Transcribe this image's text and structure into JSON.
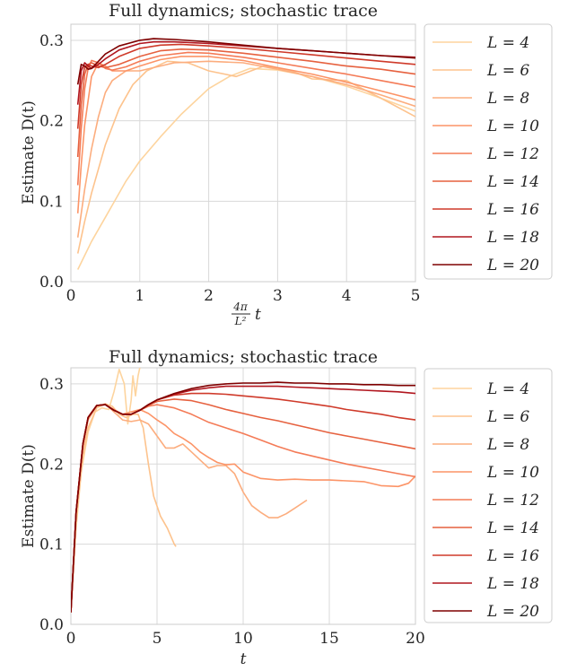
{
  "chart_data": [
    {
      "type": "line",
      "title": "Full dynamics; stochastic trace",
      "xlabel_frac_num": "4π",
      "xlabel_frac_den": "L²",
      "xlabel_var": "t",
      "ylabel": "Estimate D(t)",
      "xlim": [
        0,
        5
      ],
      "ylim": [
        0,
        0.32
      ],
      "xticks": [
        0,
        1,
        2,
        3,
        4,
        5
      ],
      "yticks": [
        0.0,
        0.1,
        0.2,
        0.3
      ],
      "ytick_labels": [
        "0.0",
        "0.1",
        "0.2",
        "0.3"
      ],
      "grid": true,
      "legend_position": "outside-right",
      "series": [
        {
          "name": "L = 4",
          "color": "#fdd49e",
          "x": [
            0.1,
            0.3,
            0.5,
            0.8,
            1.0,
            1.3,
            1.6,
            2.0,
            2.3,
            2.6,
            3.0,
            3.5,
            4.0,
            4.5,
            5.0
          ],
          "y": [
            0.015,
            0.05,
            0.08,
            0.125,
            0.15,
            0.18,
            0.208,
            0.24,
            0.255,
            0.265,
            0.263,
            0.255,
            0.243,
            0.228,
            0.212
          ]
        },
        {
          "name": "L = 6",
          "color": "#fdc38d",
          "x": [
            0.1,
            0.2,
            0.3,
            0.5,
            0.7,
            0.9,
            1.1,
            1.4,
            1.7,
            2.0,
            2.4,
            2.8,
            3.2,
            3.5,
            4.0,
            4.5,
            5.0
          ],
          "y": [
            0.035,
            0.075,
            0.11,
            0.17,
            0.215,
            0.245,
            0.262,
            0.274,
            0.272,
            0.262,
            0.255,
            0.268,
            0.262,
            0.252,
            0.25,
            0.228,
            0.205
          ]
        },
        {
          "name": "L = 8",
          "color": "#fcad7e",
          "x": [
            0.1,
            0.2,
            0.3,
            0.4,
            0.5,
            0.6,
            0.8,
            1.0,
            1.2,
            1.5,
            2.0,
            2.5,
            3.0,
            3.5,
            4.0,
            4.5,
            5.0
          ],
          "y": [
            0.055,
            0.115,
            0.165,
            0.205,
            0.235,
            0.25,
            0.262,
            0.262,
            0.266,
            0.272,
            0.274,
            0.272,
            0.264,
            0.255,
            0.245,
            0.232,
            0.218
          ]
        },
        {
          "name": "L = 10",
          "color": "#fc9467",
          "x": [
            0.1,
            0.15,
            0.2,
            0.3,
            0.4,
            0.5,
            0.6,
            0.8,
            1.0,
            1.3,
            1.6,
            2.0,
            2.5,
            3.0,
            3.5,
            4.0,
            4.5,
            5.0
          ],
          "y": [
            0.085,
            0.145,
            0.195,
            0.255,
            0.272,
            0.268,
            0.262,
            0.262,
            0.268,
            0.276,
            0.28,
            0.28,
            0.275,
            0.266,
            0.258,
            0.248,
            0.237,
            0.226
          ]
        },
        {
          "name": "L = 12",
          "color": "#f47b57",
          "x": [
            0.1,
            0.15,
            0.2,
            0.25,
            0.3,
            0.4,
            0.5,
            0.6,
            0.8,
            1.0,
            1.3,
            1.7,
            2.0,
            2.5,
            3.0,
            3.5,
            4.0,
            4.5,
            5.0
          ],
          "y": [
            0.12,
            0.19,
            0.24,
            0.265,
            0.275,
            0.272,
            0.265,
            0.263,
            0.267,
            0.274,
            0.281,
            0.285,
            0.284,
            0.279,
            0.272,
            0.265,
            0.258,
            0.25,
            0.242
          ]
        },
        {
          "name": "L = 14",
          "color": "#e6613f",
          "x": [
            0.1,
            0.15,
            0.2,
            0.25,
            0.3,
            0.4,
            0.5,
            0.7,
            1.0,
            1.3,
            1.6,
            2.0,
            2.5,
            3.0,
            3.5,
            4.0,
            4.5,
            5.0
          ],
          "y": [
            0.155,
            0.22,
            0.258,
            0.27,
            0.272,
            0.268,
            0.266,
            0.27,
            0.28,
            0.287,
            0.289,
            0.288,
            0.284,
            0.279,
            0.274,
            0.268,
            0.264,
            0.258
          ]
        },
        {
          "name": "L = 16",
          "color": "#cf3a2a",
          "x": [
            0.1,
            0.15,
            0.2,
            0.25,
            0.3,
            0.4,
            0.5,
            0.7,
            1.0,
            1.3,
            1.6,
            2.0,
            2.5,
            3.0,
            3.5,
            4.0,
            4.5,
            5.0
          ],
          "y": [
            0.19,
            0.245,
            0.267,
            0.27,
            0.268,
            0.266,
            0.27,
            0.28,
            0.29,
            0.294,
            0.295,
            0.293,
            0.29,
            0.286,
            0.282,
            0.278,
            0.274,
            0.27
          ]
        },
        {
          "name": "L = 18",
          "color": "#b1161f",
          "x": [
            0.1,
            0.15,
            0.2,
            0.25,
            0.3,
            0.4,
            0.5,
            0.7,
            1.0,
            1.2,
            1.5,
            2.0,
            2.5,
            3.0,
            3.5,
            4.0,
            4.5,
            5.0
          ],
          "y": [
            0.22,
            0.262,
            0.272,
            0.268,
            0.265,
            0.27,
            0.277,
            0.288,
            0.296,
            0.298,
            0.298,
            0.296,
            0.293,
            0.29,
            0.287,
            0.284,
            0.281,
            0.279
          ]
        },
        {
          "name": "L = 20",
          "color": "#7f0000",
          "x": [
            0.1,
            0.15,
            0.2,
            0.25,
            0.3,
            0.4,
            0.5,
            0.7,
            1.0,
            1.2,
            1.5,
            2.0,
            2.5,
            3.0,
            3.5,
            4.0,
            4.5,
            5.0
          ],
          "y": [
            0.245,
            0.27,
            0.268,
            0.264,
            0.265,
            0.274,
            0.283,
            0.293,
            0.3,
            0.302,
            0.301,
            0.298,
            0.294,
            0.29,
            0.287,
            0.284,
            0.281,
            0.278
          ]
        }
      ]
    },
    {
      "type": "line",
      "title": "Full dynamics; stochastic trace",
      "xlabel": "t",
      "ylabel": "Estimate D(t)",
      "xlim": [
        0,
        20
      ],
      "ylim": [
        0,
        0.32
      ],
      "xticks": [
        0,
        5,
        10,
        15,
        20
      ],
      "yticks": [
        0.0,
        0.1,
        0.2,
        0.3
      ],
      "ytick_labels": [
        "0.0",
        "0.1",
        "0.2",
        "0.3"
      ],
      "grid": true,
      "legend_position": "outside-right",
      "series": [
        {
          "name": "L = 4",
          "color": "#fdd49e",
          "x": [
            0,
            0.3,
            0.6,
            1.0,
            1.4,
            1.8,
            2.2,
            2.5,
            2.8,
            3.1,
            3.3,
            3.5,
            3.6,
            3.75,
            3.9,
            4.1
          ],
          "y": [
            0.015,
            0.12,
            0.19,
            0.24,
            0.265,
            0.27,
            0.268,
            0.29,
            0.318,
            0.3,
            0.25,
            0.28,
            0.31,
            0.285,
            0.31,
            0.33
          ]
        },
        {
          "name": "L = 6",
          "color": "#fdc38d",
          "x": [
            0,
            0.3,
            0.7,
            1.0,
            1.5,
            2.0,
            2.4,
            2.8,
            3.2,
            3.6,
            3.9,
            4.2,
            4.5,
            4.8,
            5.2,
            5.6,
            6.0,
            6.1
          ],
          "y": [
            0.015,
            0.13,
            0.21,
            0.245,
            0.27,
            0.275,
            0.272,
            0.262,
            0.258,
            0.262,
            0.262,
            0.245,
            0.2,
            0.16,
            0.135,
            0.12,
            0.1,
            0.097
          ]
        },
        {
          "name": "L = 8",
          "color": "#fcad7e",
          "x": [
            0,
            0.3,
            0.7,
            1.0,
            1.5,
            2.0,
            2.5,
            3.0,
            3.5,
            4.0,
            4.5,
            5.0,
            5.5,
            6.0,
            6.5,
            7.0,
            7.5,
            8.0,
            8.5,
            9.0,
            9.5,
            10.0,
            10.5,
            11.0,
            11.5,
            12.0,
            12.5,
            13.0,
            13.7
          ],
          "y": [
            0.015,
            0.14,
            0.22,
            0.255,
            0.272,
            0.275,
            0.265,
            0.255,
            0.253,
            0.255,
            0.25,
            0.235,
            0.22,
            0.22,
            0.225,
            0.215,
            0.205,
            0.195,
            0.198,
            0.198,
            0.188,
            0.165,
            0.148,
            0.14,
            0.133,
            0.133,
            0.138,
            0.145,
            0.155
          ]
        },
        {
          "name": "L = 10",
          "color": "#fc9467",
          "x": [
            0,
            0.3,
            0.7,
            1.0,
            1.5,
            2.0,
            2.5,
            3.0,
            3.5,
            4.0,
            4.5,
            5.0,
            5.5,
            6.0,
            6.5,
            7.0,
            7.5,
            8.0,
            8.5,
            9.0,
            9.5,
            10.0,
            11.0,
            12.0,
            13.0,
            14.0,
            15.0,
            16.0,
            17.0,
            18.0,
            19.0,
            19.6,
            20.0
          ],
          "y": [
            0.015,
            0.14,
            0.225,
            0.258,
            0.273,
            0.274,
            0.268,
            0.262,
            0.265,
            0.268,
            0.263,
            0.255,
            0.248,
            0.238,
            0.232,
            0.225,
            0.215,
            0.208,
            0.202,
            0.199,
            0.2,
            0.19,
            0.182,
            0.18,
            0.181,
            0.18,
            0.18,
            0.179,
            0.178,
            0.173,
            0.172,
            0.176,
            0.185
          ]
        },
        {
          "name": "L = 12",
          "color": "#f47b57",
          "x": [
            0,
            0.3,
            0.7,
            1.0,
            1.5,
            2.0,
            2.5,
            3.0,
            3.5,
            4.0,
            4.5,
            5.0,
            6.0,
            7.0,
            8.0,
            9.0,
            10.0,
            11.0,
            12.0,
            13.0,
            14.0,
            15.0,
            16.0,
            17.0,
            18.0,
            19.0,
            20.0
          ],
          "y": [
            0.015,
            0.14,
            0.225,
            0.258,
            0.273,
            0.274,
            0.267,
            0.262,
            0.262,
            0.267,
            0.272,
            0.274,
            0.27,
            0.262,
            0.252,
            0.245,
            0.238,
            0.23,
            0.222,
            0.215,
            0.21,
            0.205,
            0.2,
            0.196,
            0.192,
            0.188,
            0.184
          ]
        },
        {
          "name": "L = 14",
          "color": "#e6613f",
          "x": [
            0,
            0.3,
            0.7,
            1.0,
            1.5,
            2.0,
            2.5,
            3.0,
            3.5,
            4.0,
            4.5,
            5.0,
            6.0,
            7.0,
            8.0,
            9.0,
            10.0,
            11.0,
            12.0,
            13.0,
            14.0,
            15.0,
            16.0,
            17.0,
            18.0,
            19.0,
            20.0
          ],
          "y": [
            0.015,
            0.14,
            0.225,
            0.258,
            0.273,
            0.274,
            0.267,
            0.262,
            0.262,
            0.267,
            0.273,
            0.278,
            0.281,
            0.279,
            0.274,
            0.268,
            0.263,
            0.258,
            0.254,
            0.249,
            0.244,
            0.239,
            0.235,
            0.231,
            0.227,
            0.223,
            0.219
          ]
        },
        {
          "name": "L = 16",
          "color": "#cf3a2a",
          "x": [
            0,
            0.3,
            0.7,
            1.0,
            1.5,
            2.0,
            2.5,
            3.0,
            3.5,
            4.0,
            4.5,
            5.0,
            6.0,
            7.0,
            8.0,
            9.0,
            10.0,
            11.0,
            12.0,
            13.0,
            14.0,
            15.0,
            16.0,
            17.0,
            18.0,
            19.0,
            20.0
          ],
          "y": [
            0.015,
            0.14,
            0.225,
            0.258,
            0.273,
            0.274,
            0.267,
            0.262,
            0.262,
            0.267,
            0.274,
            0.28,
            0.286,
            0.288,
            0.288,
            0.287,
            0.285,
            0.283,
            0.281,
            0.278,
            0.275,
            0.272,
            0.268,
            0.265,
            0.262,
            0.258,
            0.255
          ]
        },
        {
          "name": "L = 18",
          "color": "#b1161f",
          "x": [
            0,
            0.3,
            0.7,
            1.0,
            1.5,
            2.0,
            2.5,
            3.0,
            3.5,
            4.0,
            4.5,
            5.0,
            6.0,
            7.0,
            8.0,
            9.0,
            10.0,
            11.0,
            12.0,
            13.0,
            14.0,
            15.0,
            16.0,
            17.0,
            18.0,
            19.0,
            20.0
          ],
          "y": [
            0.015,
            0.14,
            0.225,
            0.258,
            0.273,
            0.274,
            0.267,
            0.262,
            0.262,
            0.267,
            0.274,
            0.28,
            0.287,
            0.292,
            0.295,
            0.297,
            0.297,
            0.297,
            0.297,
            0.296,
            0.295,
            0.294,
            0.293,
            0.292,
            0.291,
            0.29,
            0.288
          ]
        },
        {
          "name": "L = 20",
          "color": "#7f0000",
          "x": [
            0,
            0.3,
            0.7,
            1.0,
            1.5,
            2.0,
            2.5,
            3.0,
            3.5,
            4.0,
            4.5,
            5.0,
            6.0,
            7.0,
            8.0,
            9.0,
            10.0,
            11.0,
            12.0,
            13.0,
            14.0,
            15.0,
            16.0,
            17.0,
            18.0,
            19.0,
            20.0
          ],
          "y": [
            0.015,
            0.14,
            0.225,
            0.258,
            0.273,
            0.274,
            0.267,
            0.262,
            0.262,
            0.267,
            0.274,
            0.28,
            0.288,
            0.294,
            0.298,
            0.3,
            0.301,
            0.301,
            0.302,
            0.301,
            0.301,
            0.3,
            0.3,
            0.299,
            0.299,
            0.298,
            0.298
          ]
        }
      ]
    }
  ]
}
